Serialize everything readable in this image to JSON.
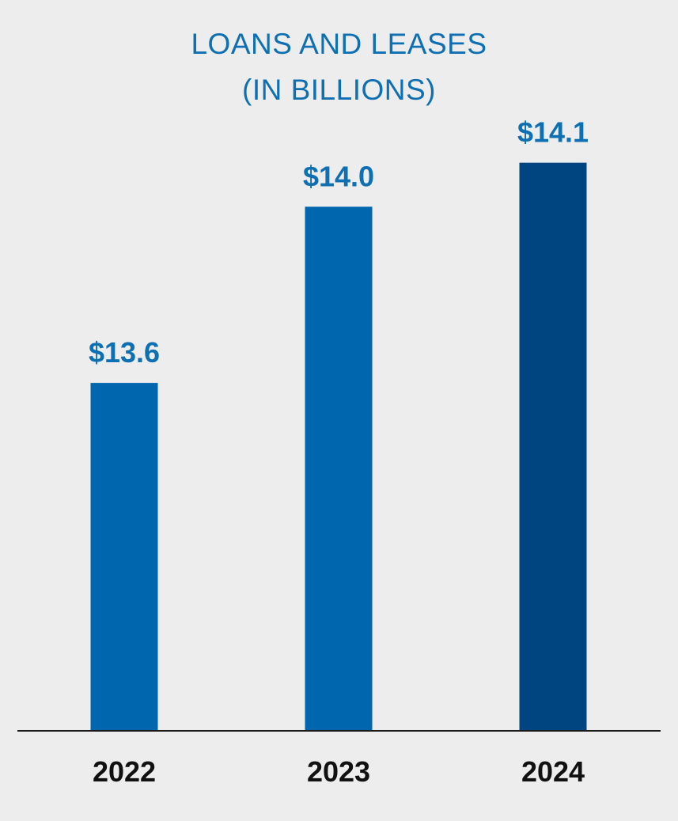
{
  "chart_data": {
    "type": "bar",
    "title_line1": "LOANS AND LEASES",
    "title_line2": "(IN BILLIONS)",
    "categories": [
      "2022",
      "2023",
      "2024"
    ],
    "values": [
      13.6,
      14.0,
      14.1
    ],
    "value_labels": [
      "$13.6",
      "$14.0",
      "$14.1"
    ],
    "xlabel": "",
    "ylabel": "",
    "ylim": [
      12.81,
      14.2
    ],
    "grid": false,
    "legend": "none",
    "bar_colors": [
      "#0066ae",
      "#0066ae",
      "#00457f"
    ],
    "title_color": "#0f6fb3",
    "value_label_color": "#0f6fb3",
    "category_label_color": "#111111",
    "axis_color": "#1a1a1a",
    "background": "#ededed"
  }
}
